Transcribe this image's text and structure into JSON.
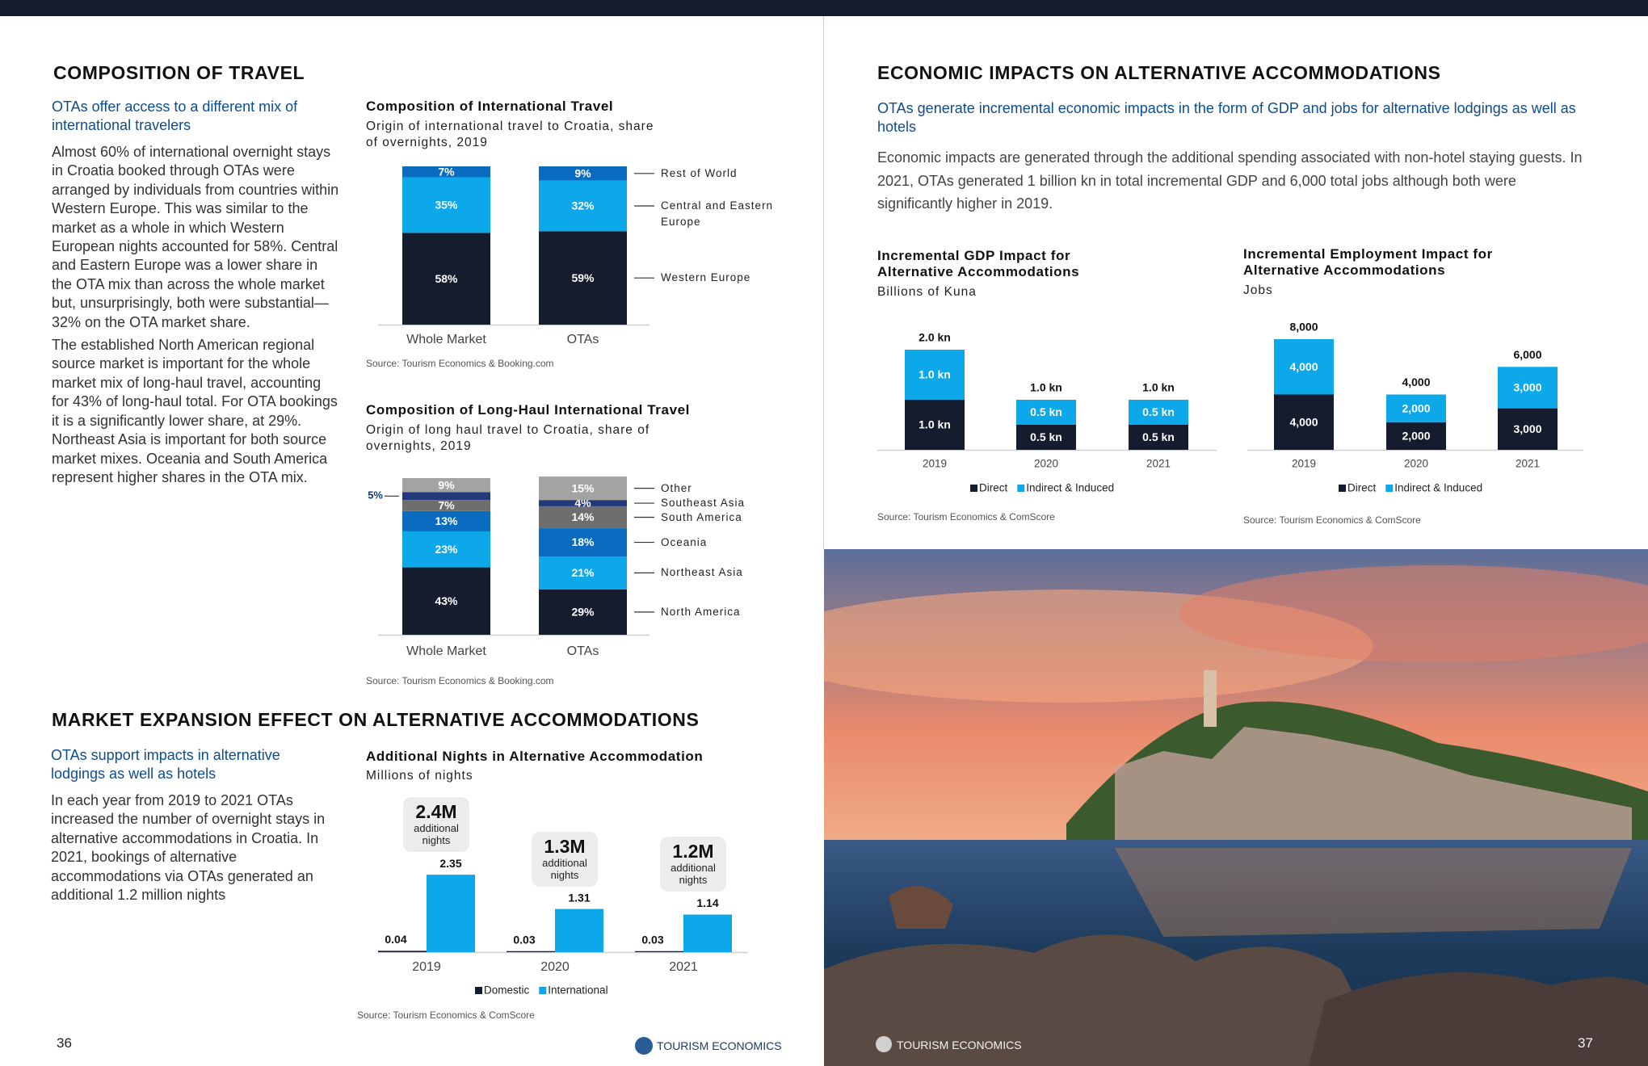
{
  "left_page": {
    "title": "COMPOSITION OF TRAVEL",
    "subheading": "OTAs offer access to a different mix of international travelers",
    "paragraphs": [
      "Almost 60% of international overnight stays in Croatia booked through OTAs were arranged by individuals from countries within Western Europe. This was similar to the market as a whole in which Western European nights accounted for 58%. Central and Eastern Europe was a lower share in the OTA mix than across the whole market but, unsurprisingly, both were substantial—32% on the OTA market share.",
      "The established North American regional source market is important for the whole market mix of long-haul travel, accounting for 43% of long-haul total. For OTA bookings it is a significantly lower share, at 29%. Northeast Asia is important for both source market mixes. Oceania and South America represent higher shares in the OTA mix."
    ],
    "section2_title": "MARKET EXPANSION EFFECT ON ALTERNATIVE ACCOMMODATIONS",
    "section2_subheading": "OTAs support impacts in alternative lodgings as well as hotels",
    "section2_paragraph": "In each year from 2019 to 2021 OTAs increased the number of overnight stays in alternative accommodations in Croatia. In 2021, bookings of alternative accommodations via OTAs generated an additional 1.2 million nights",
    "page_number": "36",
    "logo": "TOURISM ECONOMICS"
  },
  "right_page": {
    "title": "ECONOMIC IMPACTS ON ALTERNATIVE ACCOMMODATIONS",
    "subheading": "OTAs generate incremental economic impacts in the form of GDP and jobs for alternative lodgings as well as hotels",
    "paragraph": "Economic impacts are generated through the additional spending associated with non-hotel staying guests. In 2021, OTAs generated 1 billion kn in total incremental GDP and 6,000 total jobs although both were significantly higher in 2019.",
    "page_number": "37",
    "logo": "TOURISM ECONOMICS"
  },
  "chart_data": [
    {
      "type": "stacked_bar",
      "title": "Composition of International Travel",
      "subtitle": "Origin of international travel to Croatia, share of overnights, 2019",
      "categories": [
        "Whole Market",
        "OTAs"
      ],
      "series": [
        {
          "name": "Western Europe",
          "color": "#141c2e",
          "values": [
            58,
            59
          ],
          "value_labels": [
            "58%",
            "59%"
          ]
        },
        {
          "name": "Central and Eastern Europe",
          "color": "#0ca8ea",
          "values": [
            35,
            32
          ],
          "value_labels": [
            "35%",
            "32%"
          ]
        },
        {
          "name": "Rest of World",
          "color": "#0a6cc0",
          "values": [
            7,
            9
          ],
          "value_labels": [
            "7%",
            "9%"
          ]
        }
      ],
      "ylim": [
        0,
        100
      ],
      "legend": "right",
      "source": "Source: Tourism Economics & Booking.com"
    },
    {
      "type": "stacked_bar",
      "title": "Composition of Long-Haul International Travel",
      "subtitle": "Origin of long haul travel to Croatia, share of overnights, 2019",
      "categories": [
        "Whole Market",
        "OTAs"
      ],
      "series": [
        {
          "name": "North America",
          "color": "#141c2e",
          "values": [
            43,
            29
          ],
          "value_labels": [
            "43%",
            "29%"
          ]
        },
        {
          "name": "Northeast Asia",
          "color": "#0ca8ea",
          "values": [
            23,
            21
          ],
          "value_labels": [
            "23%",
            "21%"
          ]
        },
        {
          "name": "Oceania",
          "color": "#0a6cc0",
          "values": [
            13,
            18
          ],
          "value_labels": [
            "13%",
            "18%"
          ]
        },
        {
          "name": "South America",
          "color": "#6e6e6e",
          "values": [
            7,
            14
          ],
          "value_labels": [
            "7%",
            "14%"
          ]
        },
        {
          "name": "Southeast Asia",
          "color": "#22397a",
          "values": [
            5,
            4
          ],
          "value_labels": [
            "5%",
            "4%"
          ]
        },
        {
          "name": "Other",
          "color": "#a3a3a3",
          "values": [
            9,
            15
          ],
          "value_labels": [
            "9%",
            "15%"
          ]
        }
      ],
      "ylim": [
        0,
        100
      ],
      "legend": "right",
      "source": "Source: Tourism Economics & Booking.com"
    },
    {
      "type": "bar",
      "title": "Additional Nights in Alternative Accommodation",
      "subtitle": "Millions of nights",
      "categories": [
        "2019",
        "2020",
        "2021"
      ],
      "series": [
        {
          "name": "Domestic",
          "color": "#141c2e",
          "values": [
            0.04,
            0.03,
            0.03
          ]
        },
        {
          "name": "International",
          "color": "#0ca8ea",
          "values": [
            2.35,
            1.31,
            1.14
          ]
        }
      ],
      "annotations": [
        {
          "label": "2.4M",
          "text": "additional nights"
        },
        {
          "label": "1.3M",
          "text": "additional nights"
        },
        {
          "label": "1.2M",
          "text": "additional nights"
        }
      ],
      "ylim": [
        0,
        2.5
      ],
      "legend": "bottom",
      "source": "Source: Tourism Economics & ComScore"
    },
    {
      "type": "stacked_bar",
      "title": "Incremental GDP Impact for Alternative Accommodations",
      "subtitle": "Billions of Kuna",
      "categories": [
        "2019",
        "2020",
        "2021"
      ],
      "series": [
        {
          "name": "Direct",
          "color": "#141c2e",
          "values": [
            1.0,
            0.5,
            0.5
          ],
          "value_labels": [
            "1.0 kn",
            "0.5 kn",
            "0.5 kn"
          ]
        },
        {
          "name": "Indirect & Induced",
          "color": "#0ca8ea",
          "values": [
            1.0,
            0.5,
            0.5
          ],
          "value_labels": [
            "1.0 kn",
            "0.5 kn",
            "0.5 kn"
          ]
        }
      ],
      "total_labels": [
        "2.0 kn",
        "1.0 kn",
        "1.0 kn"
      ],
      "ylim": [
        0,
        2
      ],
      "legend": "bottom",
      "source": "Source: Tourism Economics & ComScore"
    },
    {
      "type": "stacked_bar",
      "title": "Incremental Employment Impact for Alternative Accommodations",
      "subtitle": "Jobs",
      "categories": [
        "2019",
        "2020",
        "2021"
      ],
      "series": [
        {
          "name": "Direct",
          "color": "#141c2e",
          "values": [
            4000,
            2000,
            3000
          ],
          "value_labels": [
            "4,000",
            "2,000",
            "3,000"
          ]
        },
        {
          "name": "Indirect & Induced",
          "color": "#0ca8ea",
          "values": [
            4000,
            2000,
            3000
          ],
          "value_labels": [
            "4,000",
            "2,000",
            "3,000"
          ]
        }
      ],
      "total_labels": [
        "8,000",
        "4,000",
        "6,000"
      ],
      "ylim": [
        0,
        8000
      ],
      "legend": "bottom",
      "source": "Source: Tourism Economics & ComScore"
    }
  ]
}
